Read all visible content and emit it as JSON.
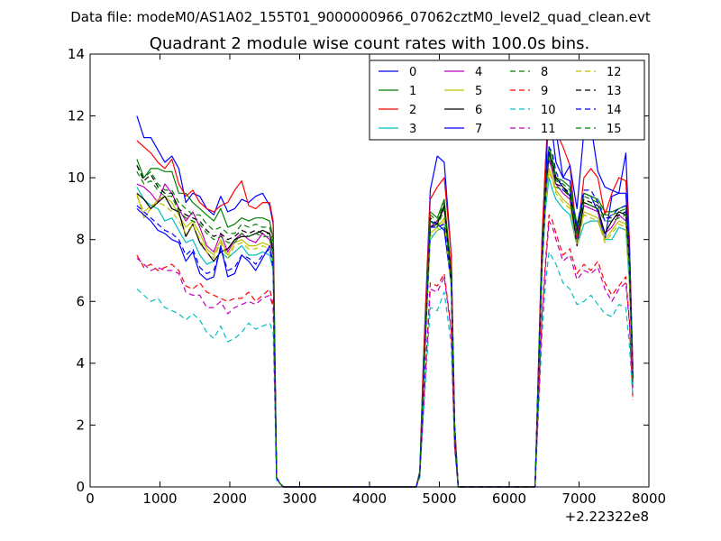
{
  "figure": {
    "suptitle": "Data file: modeM0/AS1A02_155T01_9000000966_07062cztM0_level2_quad_clean.evt"
  },
  "chart_data": {
    "type": "line",
    "title": "Quadrant 2 module wise count rates with 100.0s bins.",
    "xlabel": "",
    "ylabel": "",
    "x_offset_label": "+2.22322e8",
    "xlim": [
      0,
      8000
    ],
    "ylim": [
      0,
      14
    ],
    "xticks": [
      0,
      1000,
      2000,
      3000,
      4000,
      5000,
      6000,
      7000,
      8000
    ],
    "yticks": [
      0,
      2,
      4,
      6,
      8,
      10,
      12,
      14
    ],
    "grid": false,
    "legend_position": "top-right",
    "legend_columns": 4,
    "x": [
      670,
      770,
      870,
      970,
      1070,
      1170,
      1270,
      1370,
      1470,
      1570,
      1670,
      1770,
      1870,
      1970,
      2070,
      2170,
      2270,
      2370,
      2470,
      2570,
      2620,
      2670,
      2720,
      2770,
      2870,
      4670,
      4720,
      4770,
      4870,
      4970,
      5070,
      5170,
      5220,
      5270,
      5370,
      6370,
      6470,
      6520,
      6570,
      6620,
      6670,
      6770,
      6870,
      6970,
      7070,
      7170,
      7270,
      7370,
      7470,
      7570,
      7670,
      7720,
      7770
    ],
    "series": [
      {
        "name": "0",
        "color": "#0000ff",
        "style": "solid",
        "values": [
          12.0,
          11.3,
          11.3,
          10.9,
          10.5,
          10.7,
          10.3,
          9.2,
          9.5,
          9.4,
          9.0,
          8.8,
          9.4,
          8.9,
          9.0,
          9.3,
          9.2,
          9.4,
          9.5,
          9.1,
          8.5,
          0.3,
          0.1,
          0.0,
          0.0,
          0.0,
          0.5,
          4.0,
          9.6,
          10.7,
          10.5,
          7.5,
          2.0,
          0.0,
          0.0,
          0.0,
          8.0,
          10.5,
          12.3,
          11.4,
          10.5,
          10.0,
          9.9,
          8.2,
          9.5,
          9.4,
          8.9,
          8.0,
          9.4,
          9.5,
          10.8,
          8.0,
          3.8
        ]
      },
      {
        "name": "1",
        "color": "#008000",
        "style": "solid",
        "values": [
          10.6,
          10.0,
          10.3,
          10.3,
          10.2,
          10.2,
          9.5,
          9.5,
          9.2,
          9.0,
          8.8,
          8.6,
          9.0,
          8.4,
          8.5,
          8.7,
          8.6,
          8.7,
          8.7,
          8.6,
          8.0,
          0.3,
          0.1,
          0.0,
          0.0,
          0.0,
          0.5,
          3.5,
          8.9,
          8.7,
          9.3,
          7.0,
          1.8,
          0.0,
          0.0,
          0.0,
          7.5,
          10.0,
          11.0,
          10.6,
          10.0,
          9.9,
          9.7,
          8.5,
          9.5,
          9.4,
          9.3,
          8.9,
          8.9,
          9.0,
          9.1,
          7.5,
          3.5
        ]
      },
      {
        "name": "2",
        "color": "#ff0000",
        "style": "solid",
        "values": [
          11.2,
          11.0,
          10.8,
          10.5,
          10.3,
          10.6,
          9.8,
          9.4,
          9.6,
          9.2,
          9.0,
          8.9,
          9.1,
          9.2,
          9.6,
          9.9,
          9.1,
          9.0,
          9.2,
          9.2,
          8.6,
          0.3,
          0.1,
          0.0,
          0.0,
          0.0,
          0.5,
          4.0,
          9.3,
          9.7,
          10.0,
          7.5,
          2.0,
          0.0,
          0.0,
          0.0,
          8.0,
          10.5,
          12.5,
          12.0,
          11.5,
          11.0,
          10.4,
          8.0,
          10.0,
          10.3,
          10.0,
          8.8,
          9.5,
          10.0,
          9.9,
          8.0,
          3.8
        ]
      },
      {
        "name": "3",
        "color": "#00bfbf",
        "style": "solid",
        "values": [
          9.7,
          9.3,
          9.1,
          9.0,
          8.6,
          8.7,
          8.3,
          7.9,
          8.0,
          7.5,
          7.2,
          7.3,
          7.6,
          7.4,
          7.6,
          7.8,
          7.5,
          7.5,
          7.6,
          7.5,
          7.0,
          0.3,
          0.1,
          0.0,
          0.0,
          0.0,
          0.4,
          3.2,
          8.0,
          8.3,
          8.4,
          6.5,
          1.6,
          0.0,
          0.0,
          0.0,
          7.0,
          9.0,
          10.0,
          9.6,
          9.3,
          9.0,
          8.8,
          7.8,
          8.5,
          8.6,
          8.6,
          8.0,
          8.0,
          8.4,
          8.3,
          6.6,
          3.3
        ]
      },
      {
        "name": "4",
        "color": "#bf00bf",
        "style": "solid",
        "values": [
          9.8,
          9.7,
          9.5,
          9.2,
          9.8,
          9.5,
          9.0,
          8.6,
          8.9,
          8.4,
          7.8,
          7.6,
          8.2,
          7.6,
          8.0,
          8.2,
          8.0,
          7.9,
          8.2,
          8.0,
          7.5,
          0.3,
          0.1,
          0.0,
          0.0,
          0.0,
          0.4,
          3.4,
          8.4,
          8.6,
          9.0,
          6.8,
          1.7,
          0.0,
          0.0,
          0.0,
          7.4,
          9.5,
          10.6,
          10.2,
          9.8,
          9.5,
          9.3,
          8.0,
          9.1,
          9.0,
          8.9,
          8.2,
          8.4,
          8.8,
          8.6,
          7.0,
          3.4
        ]
      },
      {
        "name": "5",
        "color": "#bfbf00",
        "style": "solid",
        "values": [
          9.5,
          8.7,
          9.0,
          9.3,
          9.4,
          9.2,
          8.8,
          8.4,
          8.6,
          8.2,
          7.7,
          7.5,
          8.0,
          7.5,
          7.9,
          8.0,
          7.8,
          7.8,
          7.9,
          7.8,
          7.3,
          0.3,
          0.1,
          0.0,
          0.0,
          0.0,
          0.4,
          3.3,
          8.2,
          8.4,
          8.7,
          6.6,
          1.7,
          0.0,
          0.0,
          0.0,
          7.2,
          9.3,
          10.3,
          10.0,
          9.6,
          9.3,
          9.1,
          7.9,
          8.9,
          8.8,
          8.7,
          8.0,
          8.3,
          8.6,
          8.5,
          6.9,
          3.4
        ]
      },
      {
        "name": "6",
        "color": "#000000",
        "style": "solid",
        "values": [
          9.5,
          9.3,
          9.0,
          9.2,
          9.4,
          9.0,
          8.9,
          8.1,
          8.5,
          7.9,
          7.6,
          7.3,
          7.6,
          7.7,
          8.0,
          8.1,
          8.1,
          8.2,
          8.3,
          8.2,
          7.6,
          0.3,
          0.1,
          0.0,
          0.0,
          0.0,
          0.4,
          3.3,
          8.4,
          8.5,
          9.1,
          6.8,
          1.7,
          0.0,
          0.0,
          0.0,
          7.4,
          9.6,
          10.8,
          10.4,
          10.0,
          9.7,
          9.4,
          7.8,
          9.2,
          9.1,
          9.0,
          8.2,
          8.6,
          8.9,
          8.8,
          7.1,
          3.5
        ]
      },
      {
        "name": "7",
        "color": "#0000ff",
        "style": "solid",
        "values": [
          9.0,
          8.8,
          8.6,
          8.3,
          8.2,
          8.0,
          7.9,
          7.3,
          7.6,
          6.9,
          6.7,
          6.8,
          7.8,
          6.8,
          6.9,
          7.5,
          7.3,
          7.0,
          7.4,
          7.8,
          7.2,
          0.3,
          0.1,
          0.0,
          0.0,
          0.0,
          0.4,
          3.2,
          8.6,
          8.5,
          8.3,
          6.6,
          1.6,
          0.0,
          0.0,
          0.0,
          7.2,
          9.5,
          12.9,
          12.8,
          11.5,
          10.0,
          10.4,
          9.0,
          11.5,
          11.7,
          10.2,
          9.7,
          9.6,
          9.5,
          9.5,
          7.7,
          3.5
        ]
      },
      {
        "name": "8",
        "color": "#008000",
        "style": "dashed",
        "values": [
          10.4,
          10.0,
          10.2,
          9.8,
          9.6,
          9.6,
          9.2,
          9.0,
          8.8,
          8.8,
          8.5,
          8.3,
          8.4,
          8.2,
          8.2,
          8.5,
          8.4,
          8.5,
          8.4,
          8.4,
          7.9,
          0.3,
          0.1,
          0.0,
          0.0,
          0.0,
          0.5,
          3.5,
          8.8,
          8.6,
          9.2,
          6.9,
          1.8,
          0.0,
          0.0,
          0.0,
          7.5,
          9.8,
          10.9,
          10.5,
          9.9,
          9.8,
          9.6,
          8.4,
          9.4,
          9.3,
          9.2,
          8.8,
          8.8,
          8.9,
          9.0,
          7.4,
          3.5
        ]
      },
      {
        "name": "9",
        "color": "#ff0000",
        "style": "dashed",
        "values": [
          7.5,
          7.1,
          7.2,
          7.0,
          7.1,
          7.2,
          7.0,
          6.5,
          6.4,
          6.6,
          6.3,
          6.2,
          6.1,
          6.0,
          6.1,
          6.1,
          6.3,
          6.0,
          6.2,
          6.4,
          5.9,
          0.3,
          0.1,
          0.0,
          0.0,
          0.0,
          0.4,
          2.5,
          6.6,
          6.5,
          6.9,
          5.1,
          1.3,
          0.0,
          0.0,
          0.0,
          5.6,
          7.3,
          8.8,
          8.6,
          8.2,
          7.5,
          7.7,
          6.9,
          7.2,
          7.0,
          7.3,
          6.6,
          6.2,
          6.5,
          6.8,
          5.4,
          2.8
        ]
      },
      {
        "name": "10",
        "color": "#00bfbf",
        "style": "dashed",
        "values": [
          6.4,
          6.2,
          6.0,
          6.1,
          5.8,
          5.7,
          5.6,
          5.4,
          5.6,
          5.4,
          5.0,
          4.8,
          5.2,
          4.7,
          4.8,
          5.0,
          5.3,
          5.1,
          5.2,
          5.3,
          5.0,
          0.2,
          0.1,
          0.0,
          0.0,
          0.0,
          0.3,
          2.3,
          5.8,
          5.7,
          6.3,
          4.6,
          1.2,
          0.0,
          0.0,
          0.0,
          4.9,
          6.6,
          7.6,
          7.4,
          7.2,
          6.6,
          6.4,
          5.9,
          6.0,
          6.2,
          5.9,
          5.6,
          5.5,
          5.9,
          5.8,
          4.6,
          2.9
        ]
      },
      {
        "name": "11",
        "color": "#bf00bf",
        "style": "dashed",
        "values": [
          7.4,
          7.2,
          7.0,
          7.1,
          7.0,
          7.0,
          6.9,
          6.3,
          6.2,
          6.2,
          5.8,
          5.8,
          6.0,
          5.6,
          5.8,
          5.9,
          6.0,
          5.9,
          6.1,
          6.2,
          5.8,
          0.3,
          0.1,
          0.0,
          0.0,
          0.0,
          0.4,
          2.4,
          6.4,
          6.3,
          6.8,
          5.0,
          1.3,
          0.0,
          0.0,
          0.0,
          5.5,
          7.1,
          8.6,
          8.4,
          8.0,
          7.3,
          7.5,
          6.7,
          7.0,
          6.9,
          7.1,
          6.4,
          6.0,
          6.4,
          6.6,
          5.3,
          3.2
        ]
      },
      {
        "name": "12",
        "color": "#bfbf00",
        "style": "dashed",
        "values": [
          9.4,
          8.9,
          9.1,
          9.2,
          9.1,
          8.9,
          8.6,
          8.2,
          8.5,
          8.0,
          7.6,
          7.4,
          7.9,
          7.4,
          7.8,
          7.9,
          7.7,
          7.7,
          7.8,
          7.7,
          7.2,
          0.3,
          0.1,
          0.0,
          0.0,
          0.0,
          0.4,
          3.3,
          8.1,
          8.3,
          8.6,
          6.5,
          1.7,
          0.0,
          0.0,
          0.0,
          7.1,
          9.2,
          10.2,
          9.9,
          9.5,
          9.2,
          9.0,
          7.8,
          8.8,
          8.7,
          8.6,
          7.9,
          8.2,
          8.5,
          8.4,
          6.8,
          3.4
        ]
      },
      {
        "name": "13",
        "color": "#000000",
        "style": "dashed",
        "values": [
          10.4,
          9.9,
          10.1,
          9.7,
          9.5,
          9.5,
          9.0,
          8.8,
          8.7,
          8.6,
          8.3,
          8.1,
          8.2,
          8.0,
          8.1,
          8.3,
          8.2,
          8.3,
          8.2,
          8.2,
          7.7,
          0.3,
          0.1,
          0.0,
          0.0,
          0.0,
          0.5,
          3.4,
          8.7,
          8.5,
          9.1,
          6.8,
          1.8,
          0.0,
          0.0,
          0.0,
          7.4,
          9.7,
          10.8,
          10.4,
          9.8,
          9.7,
          9.5,
          8.3,
          9.3,
          9.2,
          9.1,
          8.7,
          8.7,
          8.8,
          8.9,
          7.3,
          3.5
        ]
      },
      {
        "name": "14",
        "color": "#0000ff",
        "style": "dashed",
        "values": [
          9.1,
          8.9,
          8.7,
          8.5,
          8.3,
          8.2,
          8.0,
          7.5,
          7.7,
          7.1,
          6.9,
          7.0,
          7.7,
          7.0,
          7.1,
          7.5,
          7.4,
          7.2,
          7.5,
          7.7,
          7.1,
          0.3,
          0.1,
          0.0,
          0.0,
          0.0,
          0.4,
          3.2,
          8.4,
          8.4,
          8.5,
          6.6,
          1.6,
          0.0,
          0.0,
          0.0,
          7.2,
          9.3,
          11.0,
          10.8,
          10.2,
          9.6,
          9.5,
          8.4,
          9.6,
          9.6,
          9.2,
          8.6,
          8.8,
          9.0,
          9.1,
          7.3,
          3.4
        ]
      },
      {
        "name": "15",
        "color": "#008000",
        "style": "dashed",
        "values": [
          10.2,
          9.8,
          9.9,
          9.6,
          9.4,
          9.4,
          8.9,
          8.7,
          8.6,
          8.5,
          8.2,
          8.0,
          8.1,
          7.9,
          7.9,
          8.2,
          8.1,
          8.2,
          8.1,
          8.1,
          7.6,
          0.3,
          0.1,
          0.0,
          0.0,
          0.0,
          0.5,
          3.4,
          8.6,
          8.4,
          9.0,
          6.7,
          1.7,
          0.0,
          0.0,
          0.0,
          7.3,
          9.6,
          10.7,
          10.3,
          9.7,
          9.6,
          9.4,
          8.2,
          9.2,
          9.1,
          9.0,
          8.6,
          8.6,
          8.7,
          8.8,
          7.2,
          3.5
        ]
      }
    ]
  }
}
